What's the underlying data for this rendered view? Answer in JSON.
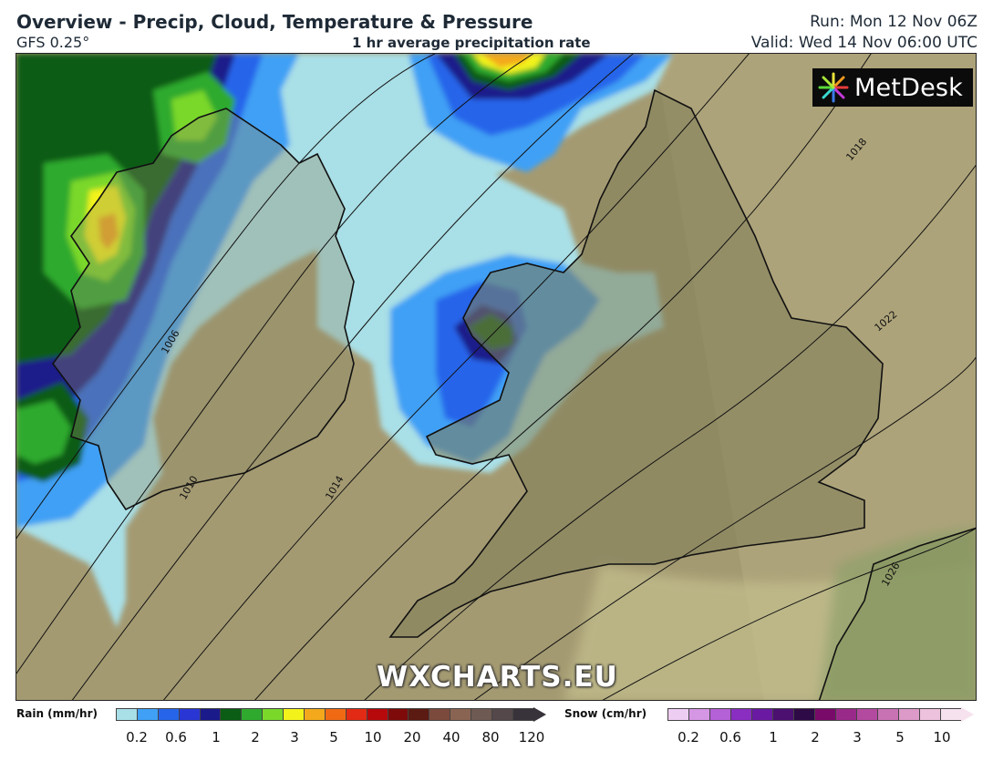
{
  "header": {
    "title": "Overview - Precip, Cloud, Temperature & Pressure",
    "model": "GFS 0.25°",
    "subtitle": "1 hr average precipitation rate",
    "run": "Run: Mon 12 Nov 06Z",
    "valid": "Valid: Wed 14 Nov 06:00 UTC"
  },
  "logo": {
    "text": "MetDesk"
  },
  "watermark": "WXCHARTS.EU",
  "isobars": [
    "1006",
    "1010",
    "1014",
    "1018",
    "1022",
    "1026"
  ],
  "legend": {
    "rain": {
      "label": "Rain (mm/hr)",
      "colors": [
        "#a9dfe6",
        "#3fa0f5",
        "#2665ea",
        "#2a36d4",
        "#1b1a8a",
        "#0b5c14",
        "#2faa2f",
        "#7ad82a",
        "#f3f31b",
        "#f3a91b",
        "#f06a14",
        "#e22a14",
        "#b7080c",
        "#7e0a0a",
        "#5b1a12",
        "#7b4a3c",
        "#8a6452",
        "#6e5a52",
        "#54484a",
        "#38333a"
      ],
      "ticks": [
        "0.2",
        "0.6",
        "1",
        "2",
        "3",
        "5",
        "10",
        "20",
        "40",
        "80",
        "120"
      ]
    },
    "snow": {
      "label": "Snow (cm/hr)",
      "colors": [
        "#eecdf2",
        "#d596e4",
        "#b460d6",
        "#8a2ec2",
        "#6a1aa2",
        "#4b1070",
        "#2e0a46",
        "#7a0a6a",
        "#9a2a8a",
        "#b44aa0",
        "#c872b4",
        "#dc9ac8",
        "#ecc2dc",
        "#f6e2ee"
      ],
      "ticks": [
        "0.2",
        "0.6",
        "1",
        "2",
        "3",
        "5",
        "10"
      ]
    }
  }
}
